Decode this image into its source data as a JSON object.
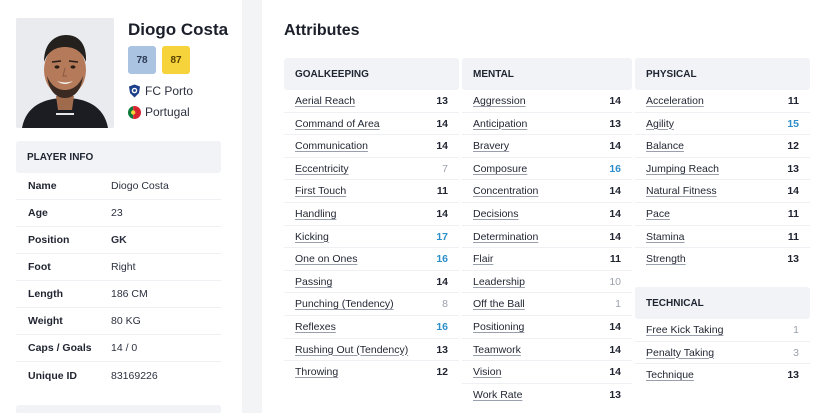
{
  "player": {
    "name": "Diogo Costa",
    "current_ability": "78",
    "potential_ability": "87",
    "club": "FC Porto",
    "country": "Portugal"
  },
  "player_info": {
    "title": "PLAYER INFO",
    "rows": [
      {
        "label": "Name",
        "value": "Diogo Costa"
      },
      {
        "label": "Age",
        "value": "23"
      },
      {
        "label": "Position",
        "value": "GK"
      },
      {
        "label": "Foot",
        "value": "Right"
      },
      {
        "label": "Length",
        "value": "186 CM"
      },
      {
        "label": "Weight",
        "value": "80 KG"
      },
      {
        "label": "Caps / Goals",
        "value": "14 / 0"
      },
      {
        "label": "Unique ID",
        "value": "83169226"
      }
    ]
  },
  "attributes": {
    "title": "Attributes",
    "goalkeeping": {
      "title": "GOALKEEPING",
      "items": [
        {
          "name": "Aerial Reach",
          "value": "13"
        },
        {
          "name": "Command of Area",
          "value": "14"
        },
        {
          "name": "Communication",
          "value": "14"
        },
        {
          "name": "Eccentricity",
          "value": "7"
        },
        {
          "name": "First Touch",
          "value": "11"
        },
        {
          "name": "Handling",
          "value": "14"
        },
        {
          "name": "Kicking",
          "value": "17"
        },
        {
          "name": "One on Ones",
          "value": "16"
        },
        {
          "name": "Passing",
          "value": "14"
        },
        {
          "name": "Punching (Tendency)",
          "value": "8"
        },
        {
          "name": "Reflexes",
          "value": "16"
        },
        {
          "name": "Rushing Out (Tendency)",
          "value": "13"
        },
        {
          "name": "Throwing",
          "value": "12"
        }
      ]
    },
    "mental": {
      "title": "MENTAL",
      "items": [
        {
          "name": "Aggression",
          "value": "14"
        },
        {
          "name": "Anticipation",
          "value": "13"
        },
        {
          "name": "Bravery",
          "value": "14"
        },
        {
          "name": "Composure",
          "value": "16"
        },
        {
          "name": "Concentration",
          "value": "14"
        },
        {
          "name": "Decisions",
          "value": "14"
        },
        {
          "name": "Determination",
          "value": "14"
        },
        {
          "name": "Flair",
          "value": "11"
        },
        {
          "name": "Leadership",
          "value": "10"
        },
        {
          "name": "Off the Ball",
          "value": "1"
        },
        {
          "name": "Positioning",
          "value": "14"
        },
        {
          "name": "Teamwork",
          "value": "14"
        },
        {
          "name": "Vision",
          "value": "14"
        },
        {
          "name": "Work Rate",
          "value": "13"
        }
      ]
    },
    "physical": {
      "title": "PHYSICAL",
      "items": [
        {
          "name": "Acceleration",
          "value": "11"
        },
        {
          "name": "Agility",
          "value": "15"
        },
        {
          "name": "Balance",
          "value": "12"
        },
        {
          "name": "Jumping Reach",
          "value": "13"
        },
        {
          "name": "Natural Fitness",
          "value": "14"
        },
        {
          "name": "Pace",
          "value": "11"
        },
        {
          "name": "Stamina",
          "value": "11"
        },
        {
          "name": "Strength",
          "value": "13"
        }
      ]
    },
    "technical": {
      "title": "TECHNICAL",
      "items": [
        {
          "name": "Free Kick Taking",
          "value": "1"
        },
        {
          "name": "Penalty Taking",
          "value": "3"
        },
        {
          "name": "Technique",
          "value": "13"
        }
      ]
    }
  },
  "colors": {
    "highlight": "#2e8ec9",
    "muted": "#9aa0ab",
    "current_ability_bg": "#a9c3e0",
    "potential_ability_bg": "#f6d33a",
    "panel_bg": "#f1f3f7"
  }
}
